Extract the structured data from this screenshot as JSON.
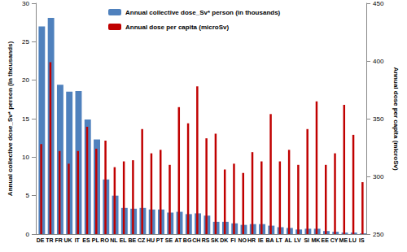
{
  "chart_data": {
    "type": "bar",
    "categories": [
      "DE",
      "TR",
      "FR",
      "UK",
      "IT",
      "ES",
      "PL",
      "RO",
      "NL",
      "EL",
      "BE",
      "CZ",
      "HU",
      "PT",
      "SE",
      "AT",
      "BG",
      "CH",
      "RS",
      "SK",
      "DK",
      "FI",
      "NO",
      "HR",
      "IE",
      "BA",
      "LT",
      "AL",
      "LV",
      "SI",
      "MK",
      "EE",
      "CY",
      "ME",
      "LU",
      "IS"
    ],
    "series": [
      {
        "name": "Annual collective dose_Sv* person (in thousands)",
        "color": "#4f81bd",
        "values": [
          27,
          28.1,
          19.4,
          18.5,
          18.6,
          14.9,
          12.3,
          7.1,
          5.0,
          3.4,
          3.3,
          3.4,
          3.2,
          3.2,
          2.8,
          2.9,
          2.6,
          2.7,
          2.4,
          1.6,
          1.6,
          1.4,
          1.2,
          1.3,
          1.3,
          1.1,
          0.9,
          0.8,
          0.6,
          0.7,
          0.7,
          0.4,
          0.3,
          0.2,
          0.2,
          0.1
        ]
      },
      {
        "name": "Annual dose per capita (microSv)",
        "color": "#c00000",
        "axis": "y2",
        "values": [
          328,
          399,
          322,
          311,
          322,
          343,
          324,
          331,
          308,
          313,
          314,
          341,
          320,
          323,
          310,
          360,
          346,
          378,
          333,
          337,
          306,
          311,
          303,
          321,
          313,
          354,
          313,
          323,
          310,
          341,
          365,
          310,
          320,
          362,
          336,
          295
        ]
      }
    ],
    "ylabel": "Annual collective dose_Sv* person (in thousands)",
    "y2label": "Annual dose per capita (microSv)",
    "ylim": [
      0,
      30
    ],
    "yticks": [
      0,
      5,
      10,
      15,
      20,
      25,
      30
    ],
    "y2lim": [
      250,
      450
    ],
    "y2ticks": [
      250,
      300,
      350,
      400,
      450
    ],
    "grid": false,
    "legend": "top"
  }
}
